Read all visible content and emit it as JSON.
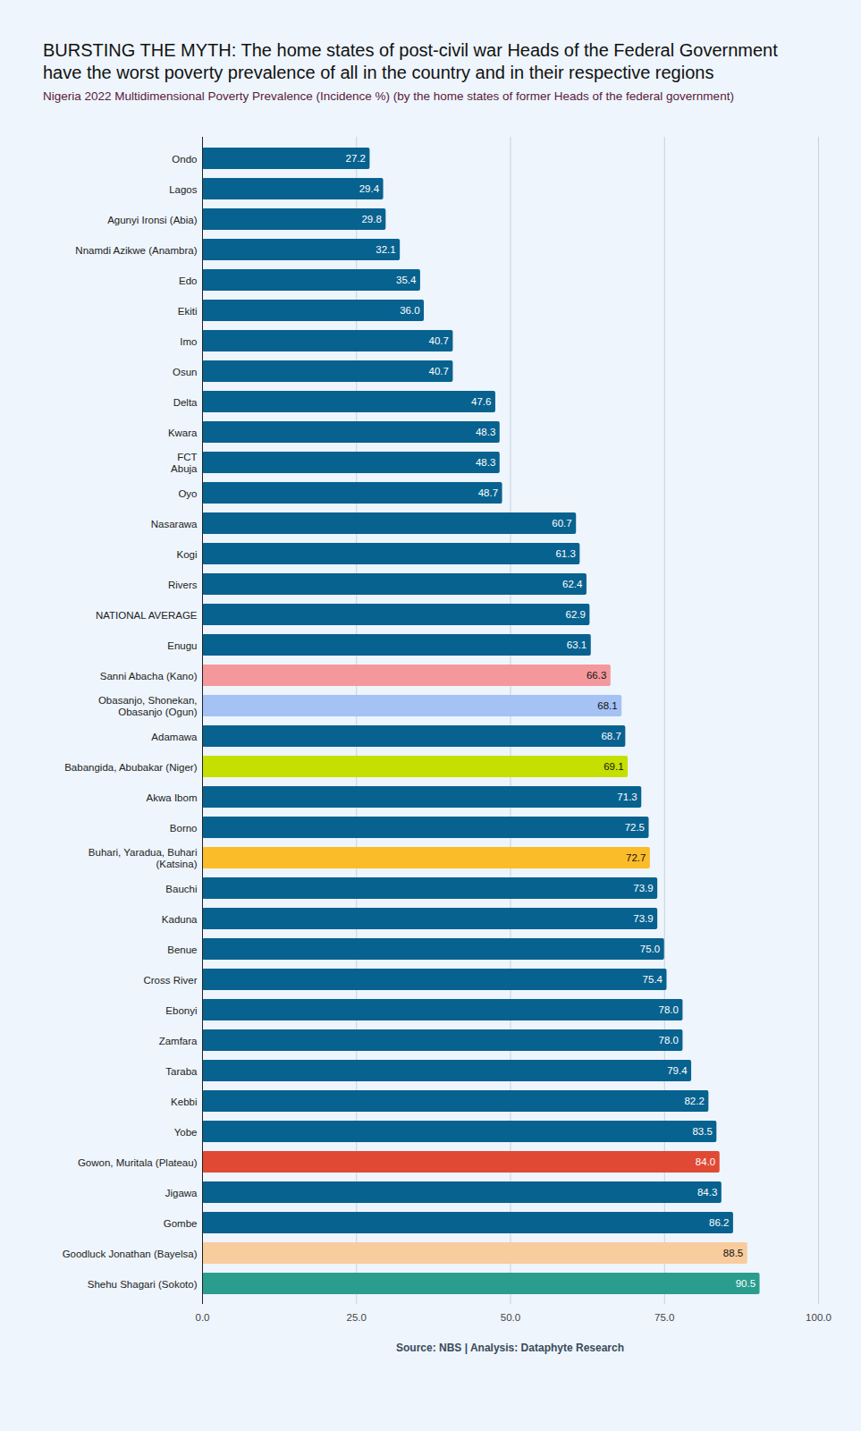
{
  "chart_data": {
    "type": "bar",
    "title": "BURSTING THE MYTH: The home states of post-civil war Heads of the Federal Government have the worst poverty prevalence of all in the country and in their respective regions",
    "subtitle": "Nigeria 2022 Multidimensional Poverty Prevalence (Incidence %) (by the home states of former Heads of the federal government)",
    "caption": "Source: NBS | Analysis: Dataphyte Research",
    "orientation": "horizontal",
    "categories": [
      "Ondo",
      "Lagos",
      "Agunyi Ironsi (Abia)",
      "Nnamdi Azikwe (Anambra)",
      "Edo",
      "Ekiti",
      "Imo",
      "Osun",
      "Delta",
      "Kwara",
      "FCT\nAbuja",
      "Oyo",
      "Nasarawa",
      "Kogi",
      "Rivers",
      "NATIONAL AVERAGE",
      "Enugu",
      "Sanni Abacha (Kano)",
      "Obasanjo, Shonekan,\nObasanjo (Ogun)",
      "Adamawa",
      "Babangida, Abubakar (Niger)",
      "Akwa Ibom",
      "Borno",
      "Buhari, Yaradua, Buhari\n(Katsina)",
      "Bauchi",
      "Kaduna",
      "Benue",
      "Cross River",
      "Ebonyi",
      "Zamfara",
      "Taraba",
      "Kebbi",
      "Yobe",
      "Gowon, Muritala (Plateau)",
      "Jigawa",
      "Gombe",
      "Goodluck Jonathan (Bayelsa)",
      "Shehu Shagari (Sokoto)"
    ],
    "values": [
      27.2,
      29.4,
      29.8,
      32.1,
      35.4,
      36.0,
      40.7,
      40.7,
      47.6,
      48.3,
      48.3,
      48.7,
      60.7,
      61.3,
      62.4,
      62.9,
      63.1,
      66.3,
      68.1,
      68.7,
      69.1,
      71.3,
      72.5,
      72.7,
      73.9,
      73.9,
      75.0,
      75.4,
      78.0,
      78.0,
      79.4,
      82.2,
      83.5,
      84.0,
      84.3,
      86.2,
      88.5,
      90.5
    ],
    "value_labels": [
      "27.2",
      "29.4",
      "29.8",
      "32.1",
      "35.4",
      "36.0",
      "40.7",
      "40.7",
      "47.6",
      "48.3",
      "48.3",
      "48.7",
      "60.7",
      "61.3",
      "62.4",
      "62.9",
      "63.1",
      "66.3",
      "68.1",
      "68.7",
      "69.1",
      "71.3",
      "72.5",
      "72.7",
      "73.9",
      "73.9",
      "75.0",
      "75.4",
      "78.0",
      "78.0",
      "79.4",
      "82.2",
      "83.5",
      "84.0",
      "84.3",
      "86.2",
      "88.5",
      "90.5"
    ],
    "colors": [
      "#08628f",
      "#08628f",
      "#08628f",
      "#08628f",
      "#08628f",
      "#08628f",
      "#08628f",
      "#08628f",
      "#08628f",
      "#08628f",
      "#08628f",
      "#08628f",
      "#08628f",
      "#08628f",
      "#08628f",
      "#08628f",
      "#08628f",
      "#f4989c",
      "#a4c2f4",
      "#08628f",
      "#c5e000",
      "#08628f",
      "#08628f",
      "#fbbc2a",
      "#08628f",
      "#08628f",
      "#08628f",
      "#08628f",
      "#08628f",
      "#08628f",
      "#08628f",
      "#08628f",
      "#08628f",
      "#e04a35",
      "#08628f",
      "#08628f",
      "#f9cc9d",
      "#2a9d8f"
    ],
    "xlim": [
      0,
      100
    ],
    "xticks": [
      {
        "value": 0,
        "label": "0.0"
      },
      {
        "value": 25,
        "label": "25.0"
      },
      {
        "value": 50,
        "label": "50.0"
      },
      {
        "value": 75,
        "label": "75.0"
      },
      {
        "value": 100,
        "label": "100.0"
      }
    ],
    "grid": true,
    "data_labels": true
  }
}
